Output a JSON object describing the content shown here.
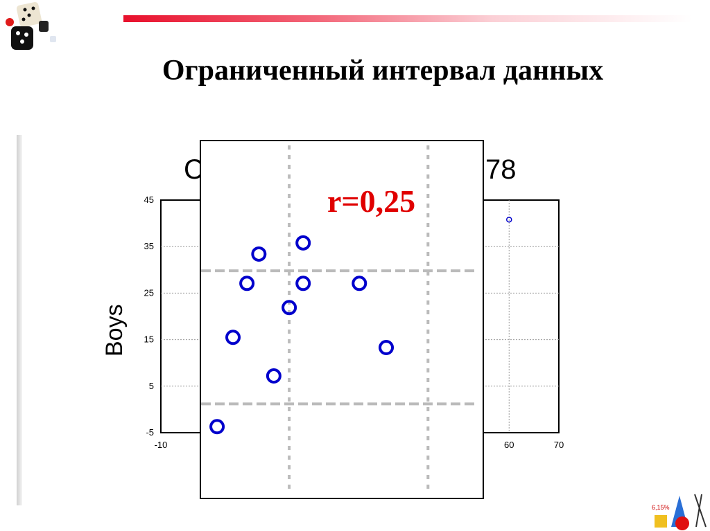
{
  "slide": {
    "title": "Ограниченный интервал данных",
    "correlation_label": "r=0,25",
    "accent_color": "#e8102c",
    "logo_top_left": "dice-icon",
    "logo_bottom_right": "math-shapes-icon",
    "logo_bottom_right_text": "6,15%"
  },
  "chart_data": {
    "type": "scatter",
    "title_fragments": [
      "C",
      "78"
    ],
    "ylabel": "Boys",
    "xlabel": "",
    "xlim": [
      -10,
      70
    ],
    "ylim": [
      -5,
      45
    ],
    "x_tick_labels_visible": [
      "-10",
      "60",
      "70"
    ],
    "y_tick_labels": [
      "45",
      "35",
      "25",
      "15",
      "5",
      "-5"
    ],
    "grid": true,
    "marker_color": "#0000cc",
    "points": [
      {
        "x": 1.3,
        "y": -3.7
      },
      {
        "x": 4.5,
        "y": 15.5
      },
      {
        "x": 7.3,
        "y": 27.1
      },
      {
        "x": 9.7,
        "y": 33.4
      },
      {
        "x": 12.7,
        "y": 7.2
      },
      {
        "x": 15.8,
        "y": 21.9
      },
      {
        "x": 18.6,
        "y": 35.8
      },
      {
        "x": 18.6,
        "y": 27.1
      },
      {
        "x": 29.9,
        "y": 27.1
      },
      {
        "x": 35.3,
        "y": 13.3
      }
    ],
    "background_points": [
      {
        "x": 60,
        "y": 40.8
      }
    ],
    "restricted_range": {
      "x": [
        15.8,
        43.7
      ],
      "y": [
        1.2,
        29.8
      ]
    }
  }
}
